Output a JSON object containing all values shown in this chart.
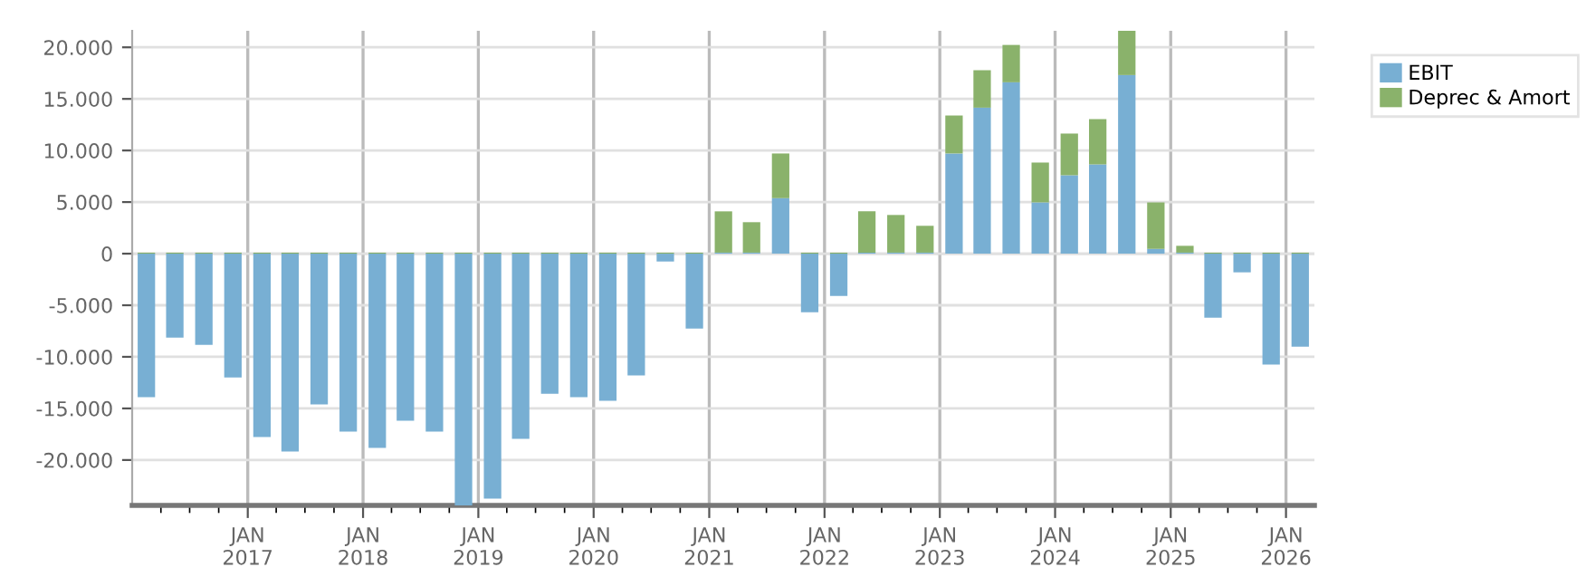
{
  "chart_data": {
    "type": "bar",
    "stacked": true,
    "x": [
      "2016-02-15",
      "2016-05-15",
      "2016-08-15",
      "2016-11-15",
      "2017-02-15",
      "2017-05-15",
      "2017-08-15",
      "2017-11-15",
      "2018-02-15",
      "2018-05-15",
      "2018-08-15",
      "2018-11-15",
      "2019-02-15",
      "2019-05-15",
      "2019-08-15",
      "2019-11-15",
      "2020-02-15",
      "2020-05-15",
      "2020-08-15",
      "2020-11-15",
      "2021-02-15",
      "2021-05-15",
      "2021-08-15",
      "2021-11-15",
      "2022-02-15",
      "2022-05-15",
      "2022-08-15",
      "2022-11-15",
      "2023-02-15",
      "2023-05-15",
      "2023-08-15",
      "2023-11-15",
      "2024-02-15",
      "2024-05-15",
      "2024-08-15",
      "2024-11-15",
      "2025-02-15",
      "2025-05-15",
      "2025-08-15",
      "2025-11-15",
      "2026-02-15"
    ],
    "series": [
      {
        "name": "EBIT",
        "color": "#78afd3",
        "values": [
          -13900,
          -8130,
          -8830,
          -12000,
          -17780,
          -19180,
          -14620,
          -17250,
          -18830,
          -16200,
          -17250,
          -24400,
          -23740,
          -17950,
          -13570,
          -13920,
          -14270,
          -11810,
          -760,
          -7250,
          100,
          100,
          5380,
          -5670,
          -4090,
          100,
          100,
          100,
          9710,
          14150,
          16610,
          4970,
          7600,
          8650,
          17310,
          470,
          100,
          -6200,
          -1810,
          -10760,
          -9010
        ]
      },
      {
        "name": "Deprec & Amort",
        "color": "#8ab26b",
        "values": [
          100,
          100,
          100,
          100,
          100,
          100,
          100,
          100,
          100,
          100,
          100,
          100,
          100,
          100,
          100,
          100,
          100,
          100,
          100,
          100,
          4000,
          2950,
          4330,
          100,
          100,
          4000,
          3650,
          2600,
          3680,
          3630,
          3620,
          3860,
          4040,
          4390,
          4290,
          4500,
          660,
          100,
          100,
          100,
          100
        ]
      }
    ],
    "xlim": [
      "2016-01-01",
      "2026-04-01"
    ],
    "xticks": [
      {
        "value": "2016-04-01",
        "label": null
      },
      {
        "value": "2016-07-01",
        "label": null
      },
      {
        "value": "2016-10-01",
        "label": null
      },
      {
        "value": "2017-01-01",
        "label": "JAN\n2017"
      },
      {
        "value": "2017-04-01",
        "label": null
      },
      {
        "value": "2017-07-01",
        "label": null
      },
      {
        "value": "2017-10-01",
        "label": null
      },
      {
        "value": "2018-01-01",
        "label": "JAN\n2018"
      },
      {
        "value": "2018-04-01",
        "label": null
      },
      {
        "value": "2018-07-01",
        "label": null
      },
      {
        "value": "2018-10-01",
        "label": null
      },
      {
        "value": "2019-01-01",
        "label": "JAN\n2019"
      },
      {
        "value": "2019-04-01",
        "label": null
      },
      {
        "value": "2019-07-01",
        "label": null
      },
      {
        "value": "2019-10-01",
        "label": null
      },
      {
        "value": "2020-01-01",
        "label": "JAN\n2020"
      },
      {
        "value": "2020-04-01",
        "label": null
      },
      {
        "value": "2020-07-01",
        "label": null
      },
      {
        "value": "2020-10-01",
        "label": null
      },
      {
        "value": "2021-01-01",
        "label": "JAN\n2021"
      },
      {
        "value": "2021-04-01",
        "label": null
      },
      {
        "value": "2021-07-01",
        "label": null
      },
      {
        "value": "2021-10-01",
        "label": null
      },
      {
        "value": "2022-01-01",
        "label": "JAN\n2022"
      },
      {
        "value": "2022-04-01",
        "label": null
      },
      {
        "value": "2022-07-01",
        "label": null
      },
      {
        "value": "2022-10-01",
        "label": null
      },
      {
        "value": "2023-01-01",
        "label": "JAN\n2023"
      },
      {
        "value": "2023-04-01",
        "label": null
      },
      {
        "value": "2023-07-01",
        "label": null
      },
      {
        "value": "2023-10-01",
        "label": null
      },
      {
        "value": "2024-01-01",
        "label": "JAN\n2024"
      },
      {
        "value": "2024-04-01",
        "label": null
      },
      {
        "value": "2024-07-01",
        "label": null
      },
      {
        "value": "2024-10-01",
        "label": null
      },
      {
        "value": "2025-01-01",
        "label": "JAN\n2025"
      },
      {
        "value": "2025-04-01",
        "label": null
      },
      {
        "value": "2025-07-01",
        "label": null
      },
      {
        "value": "2025-10-01",
        "label": null
      },
      {
        "value": "2026-01-01",
        "label": "JAN\n2026"
      }
    ],
    "ylim": [
      -24400,
      21600
    ],
    "yticks": [
      {
        "value": -20000,
        "label": "-20.000"
      },
      {
        "value": -15000,
        "label": "-15.000"
      },
      {
        "value": -10000,
        "label": "-10.000"
      },
      {
        "value": -5000,
        "label": "-5.000"
      },
      0,
      {
        "value": 5000,
        "label": "5.000"
      },
      {
        "value": 10000,
        "label": "10.000"
      },
      {
        "value": 15000,
        "label": "15.000"
      },
      {
        "value": 20000,
        "label": "20.000"
      }
    ],
    "grid": true,
    "legend": "top right"
  }
}
